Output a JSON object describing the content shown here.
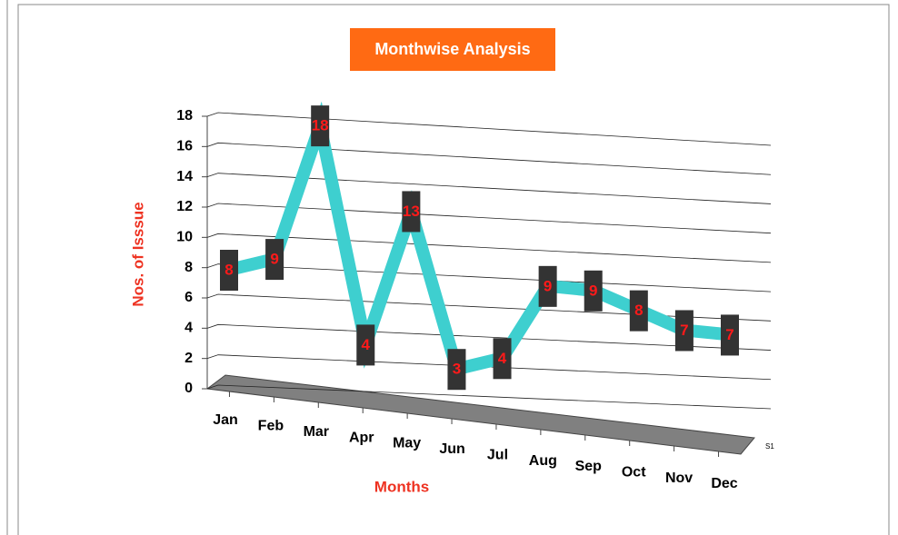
{
  "chart_data": {
    "type": "line",
    "title": "Monthwise Analysis",
    "x_label": "Months",
    "y_label": "Nos. of Isssue",
    "categories": [
      "Jan",
      "Feb",
      "Mar",
      "Apr",
      "May",
      "Jun",
      "Jul",
      "Aug",
      "Sep",
      "Oct",
      "Nov",
      "Dec"
    ],
    "series": [
      {
        "name": "S1",
        "color": "#3ecfcf",
        "values": [
          8,
          9,
          18,
          4,
          13,
          3,
          4,
          9,
          9,
          8,
          7,
          7
        ]
      }
    ],
    "ylim": [
      0,
      18
    ],
    "yticks": [
      0,
      2,
      4,
      6,
      8,
      10,
      12,
      14,
      16,
      18
    ],
    "grid": true
  }
}
